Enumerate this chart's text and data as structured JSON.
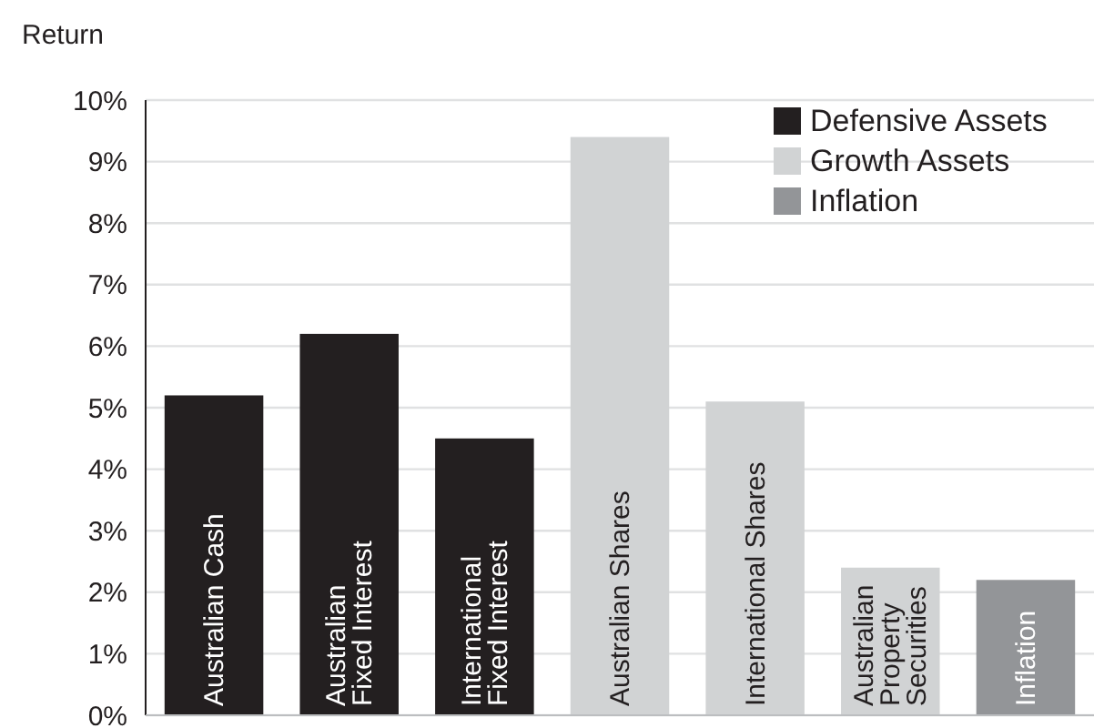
{
  "chart_data": {
    "type": "bar",
    "ylabel": "Return",
    "categories": [
      "Australian Cash",
      "Australian\nFixed Interest",
      "International\nFixed Interest",
      "Australian Shares",
      "International Shares",
      "Australian\nProperty\nSecurities",
      "Inflation"
    ],
    "series": [
      {
        "name": "Defensive Assets",
        "color": "#231f20",
        "values": [
          5.2,
          6.2,
          4.5,
          null,
          null,
          null,
          null
        ]
      },
      {
        "name": "Growth Assets",
        "color": "#d1d3d4",
        "values": [
          null,
          null,
          null,
          9.4,
          5.1,
          2.4,
          null
        ]
      },
      {
        "name": "Inflation",
        "color": "#939598",
        "values": [
          null,
          null,
          null,
          null,
          null,
          null,
          2.2
        ]
      }
    ],
    "ylim": [
      0,
      10
    ],
    "yticks": [
      {
        "value": 0,
        "label": "0%"
      },
      {
        "value": 1,
        "label": "1%"
      },
      {
        "value": 2,
        "label": "2%"
      },
      {
        "value": 3,
        "label": "3%"
      },
      {
        "value": 4,
        "label": "4%"
      },
      {
        "value": 5,
        "label": "5%"
      },
      {
        "value": 6,
        "label": "6%"
      },
      {
        "value": 7,
        "label": "7%"
      },
      {
        "value": 8,
        "label": "8%"
      },
      {
        "value": 9,
        "label": "9%"
      },
      {
        "value": 10,
        "label": "10%"
      }
    ],
    "grid": "y",
    "legend": "top right"
  }
}
